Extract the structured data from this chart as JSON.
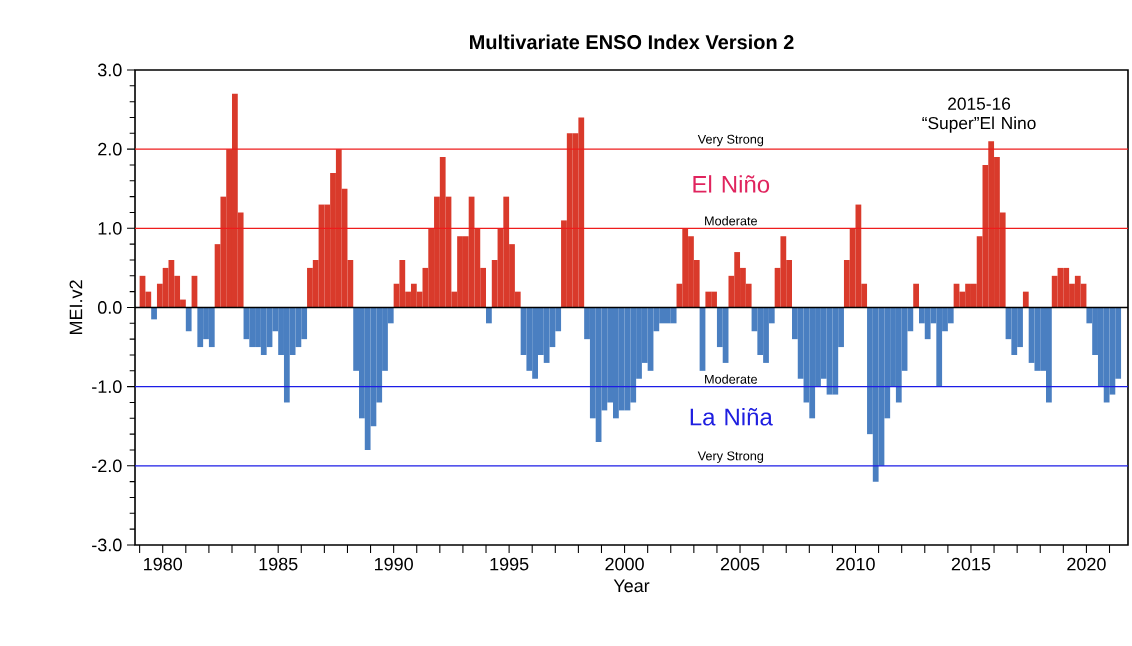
{
  "chart_data": {
    "type": "bar",
    "title": "Multivariate ENSO Index Version 2",
    "xlabel": "Year",
    "ylabel": "MEI.v2",
    "xlim": [
      1978.8,
      2021.8
    ],
    "ylim": [
      -3,
      3
    ],
    "xticks": [
      {
        "value": 1979,
        "label": null
      },
      1980,
      {
        "value": 1981,
        "label": null
      },
      {
        "value": 1982,
        "label": null
      },
      {
        "value": 1983,
        "label": null
      },
      {
        "value": 1984,
        "label": null
      },
      1985,
      {
        "value": 1986,
        "label": null
      },
      {
        "value": 1987,
        "label": null
      },
      {
        "value": 1988,
        "label": null
      },
      {
        "value": 1989,
        "label": null
      },
      1990,
      {
        "value": 1991,
        "label": null
      },
      {
        "value": 1992,
        "label": null
      },
      {
        "value": 1993,
        "label": null
      },
      {
        "value": 1994,
        "label": null
      },
      1995,
      {
        "value": 1996,
        "label": null
      },
      {
        "value": 1997,
        "label": null
      },
      {
        "value": 1998,
        "label": null
      },
      {
        "value": 1999,
        "label": null
      },
      2000,
      {
        "value": 2001,
        "label": null
      },
      {
        "value": 2002,
        "label": null
      },
      {
        "value": 2003,
        "label": null
      },
      {
        "value": 2004,
        "label": null
      },
      2005,
      {
        "value": 2006,
        "label": null
      },
      {
        "value": 2007,
        "label": null
      },
      {
        "value": 2008,
        "label": null
      },
      {
        "value": 2009,
        "label": null
      },
      2010,
      {
        "value": 2011,
        "label": null
      },
      {
        "value": 2012,
        "label": null
      },
      {
        "value": 2013,
        "label": null
      },
      {
        "value": 2014,
        "label": null
      },
      2015,
      {
        "value": 2016,
        "label": null
      },
      {
        "value": 2017,
        "label": null
      },
      {
        "value": 2018,
        "label": null
      },
      {
        "value": 2019,
        "label": null
      },
      2020,
      {
        "value": 2021,
        "label": null
      }
    ],
    "yticks": [
      {
        "value": -3,
        "label": "-3.0"
      },
      {
        "value": -2,
        "label": "-2.0"
      },
      {
        "value": -1,
        "label": "-1.0"
      },
      {
        "value": 0,
        "label": "0.0"
      },
      {
        "value": 1,
        "label": "1.0"
      },
      {
        "value": 2,
        "label": "2.0"
      },
      {
        "value": 3,
        "label": "3.0"
      }
    ],
    "series": [
      {
        "color": "#d93a2b",
        "x": [
          1979.125,
          1979.375,
          1979.875,
          1980.125,
          1980.375,
          1980.625,
          1980.875,
          1981.375,
          1982.375,
          1982.625,
          1982.875,
          1983.125,
          1983.375,
          1986.375,
          1986.625,
          1986.875,
          1987.125,
          1987.375,
          1987.625,
          1987.875,
          1988.125,
          1990.125,
          1990.375,
          1990.625,
          1990.875,
          1991.125,
          1991.375,
          1991.625,
          1991.875,
          1992.125,
          1992.375,
          1992.625,
          1992.875,
          1993.125,
          1993.375,
          1993.625,
          1993.875,
          1994.375,
          1994.625,
          1994.875,
          1995.125,
          1995.375,
          1997.375,
          1997.625,
          1997.875,
          1998.125,
          2002.375,
          2002.625,
          2002.875,
          2003.125,
          2003.625,
          2003.875,
          2004.625,
          2004.875,
          2005.125,
          2005.375,
          2006.625,
          2006.875,
          2007.125,
          2009.625,
          2009.875,
          2010.125,
          2010.375,
          2012.625,
          2014.375,
          2014.625,
          2014.875,
          2015.125,
          2015.375,
          2015.625,
          2015.875,
          2016.125,
          2016.375,
          2017.375,
          2018.625,
          2018.875,
          2019.125,
          2019.375,
          2019.625,
          2019.875
        ],
        "values": [
          0.4,
          0.2,
          0.3,
          0.5,
          0.6,
          0.4,
          0.1,
          0.4,
          0.8,
          1.4,
          2.0,
          2.7,
          1.2,
          0.5,
          0.6,
          1.3,
          1.3,
          1.7,
          2.0,
          1.5,
          0.6,
          0.3,
          0.6,
          0.2,
          0.3,
          0.2,
          0.5,
          1.0,
          1.4,
          1.9,
          1.4,
          0.2,
          0.9,
          0.9,
          1.4,
          1.0,
          0.5,
          0.6,
          1.0,
          1.4,
          0.8,
          0.2,
          1.1,
          2.2,
          2.2,
          2.4,
          0.3,
          1.0,
          0.9,
          0.6,
          0.2,
          0.2,
          0.4,
          0.7,
          0.5,
          0.3,
          0.5,
          0.9,
          0.6,
          0.6,
          1.0,
          1.3,
          0.3,
          0.3,
          0.3,
          0.2,
          0.3,
          0.3,
          0.9,
          1.8,
          2.1,
          1.9,
          1.2,
          0.2,
          0.4,
          0.5,
          0.5,
          0.3,
          0.4,
          0.3
        ]
      },
      {
        "color": "#4a7fc1",
        "x": [
          1979.625,
          1981.125,
          1981.625,
          1981.875,
          1982.125,
          1983.625,
          1983.875,
          1984.125,
          1984.375,
          1984.625,
          1984.875,
          1985.125,
          1985.375,
          1985.625,
          1985.875,
          1986.125,
          1988.375,
          1988.625,
          1988.875,
          1989.125,
          1989.375,
          1989.625,
          1989.875,
          1994.125,
          1995.625,
          1995.875,
          1996.125,
          1996.375,
          1996.625,
          1996.875,
          1997.125,
          1998.375,
          1998.625,
          1998.875,
          1999.125,
          1999.375,
          1999.625,
          1999.875,
          2000.125,
          2000.375,
          2000.625,
          2000.875,
          2001.125,
          2001.375,
          2001.625,
          2001.875,
          2002.125,
          2003.375,
          2004.125,
          2004.375,
          2005.625,
          2005.875,
          2006.125,
          2006.375,
          2007.375,
          2007.625,
          2007.875,
          2008.125,
          2008.375,
          2008.625,
          2008.875,
          2009.125,
          2009.375,
          2010.625,
          2010.875,
          2011.125,
          2011.375,
          2011.625,
          2011.875,
          2012.125,
          2012.375,
          2012.875,
          2013.125,
          2013.375,
          2013.625,
          2013.875,
          2014.125,
          2016.625,
          2016.875,
          2017.125,
          2017.625,
          2017.875,
          2018.125,
          2018.375,
          2020.125,
          2020.375,
          2020.625,
          2020.875,
          2021.125,
          2021.375
        ],
        "values": [
          -0.15,
          -0.3,
          -0.5,
          -0.4,
          -0.5,
          -0.4,
          -0.5,
          -0.5,
          -0.6,
          -0.5,
          -0.3,
          -0.6,
          -1.2,
          -0.6,
          -0.5,
          -0.4,
          -0.8,
          -1.4,
          -1.8,
          -1.5,
          -1.2,
          -0.8,
          -0.2,
          -0.2,
          -0.6,
          -0.8,
          -0.9,
          -0.6,
          -0.7,
          -0.5,
          -0.3,
          -0.4,
          -1.4,
          -1.7,
          -1.3,
          -1.2,
          -1.4,
          -1.3,
          -1.3,
          -1.2,
          -0.9,
          -0.7,
          -0.8,
          -0.3,
          -0.2,
          -0.2,
          -0.2,
          -0.8,
          -0.5,
          -0.7,
          -0.3,
          -0.6,
          -0.7,
          -0.2,
          -0.4,
          -0.9,
          -1.2,
          -1.4,
          -1.0,
          -0.9,
          -1.1,
          -1.1,
          -0.5,
          -1.6,
          -2.2,
          -2.0,
          -1.4,
          -1.0,
          -1.2,
          -0.8,
          -0.3,
          -0.2,
          -0.4,
          -0.2,
          -1.0,
          -0.3,
          -0.2,
          -0.4,
          -0.6,
          -0.5,
          -0.7,
          -0.8,
          -0.8,
          -1.2,
          -0.2,
          -0.6,
          -1.0,
          -1.2,
          -1.1,
          -0.9
        ]
      }
    ],
    "ref_lines": [
      {
        "axis": "y",
        "value": 2,
        "label": "Very Strong",
        "color": "#ee1c1c"
      },
      {
        "axis": "y",
        "value": 1,
        "label": "Moderate",
        "color": "#ee1c1c"
      },
      {
        "axis": "y",
        "value": -1,
        "label": "Moderate",
        "color": "#1c1ce6"
      },
      {
        "axis": "y",
        "value": -2,
        "label": "Very Strong",
        "color": "#1c1ce6"
      }
    ],
    "annotations": [
      "El Niño",
      "La Niña",
      "2015-16 “Super”El Nino"
    ],
    "grid": false
  }
}
